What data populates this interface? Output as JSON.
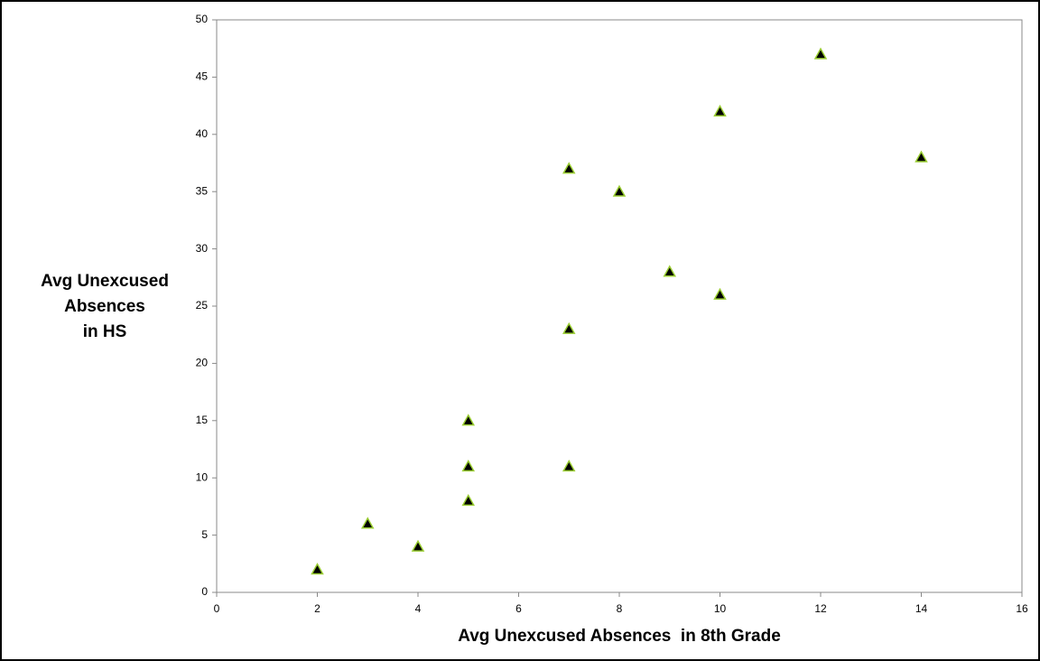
{
  "chart_data": {
    "type": "scatter",
    "xlabel": "Avg Unexcused Absences  in 8th Grade",
    "ylabel": [
      "Avg Unexcused",
      "Absences",
      "in HS"
    ],
    "x": [
      2,
      3,
      4,
      5,
      5,
      5,
      7,
      7,
      7,
      8,
      9,
      10,
      10,
      12,
      14
    ],
    "values": [
      2,
      6,
      4,
      8,
      11,
      15,
      11,
      23,
      37,
      35,
      28,
      26,
      42,
      47,
      38
    ],
    "color": "#000000",
    "edge_color": "#9acd32",
    "xlim": [
      0,
      16
    ],
    "xticks": [
      0,
      2,
      4,
      6,
      8,
      10,
      12,
      14,
      16
    ],
    "ylim": [
      0,
      50
    ],
    "yticks": [
      0,
      5,
      10,
      15,
      20,
      25,
      30,
      35,
      40,
      45,
      50
    ],
    "grid": false
  }
}
